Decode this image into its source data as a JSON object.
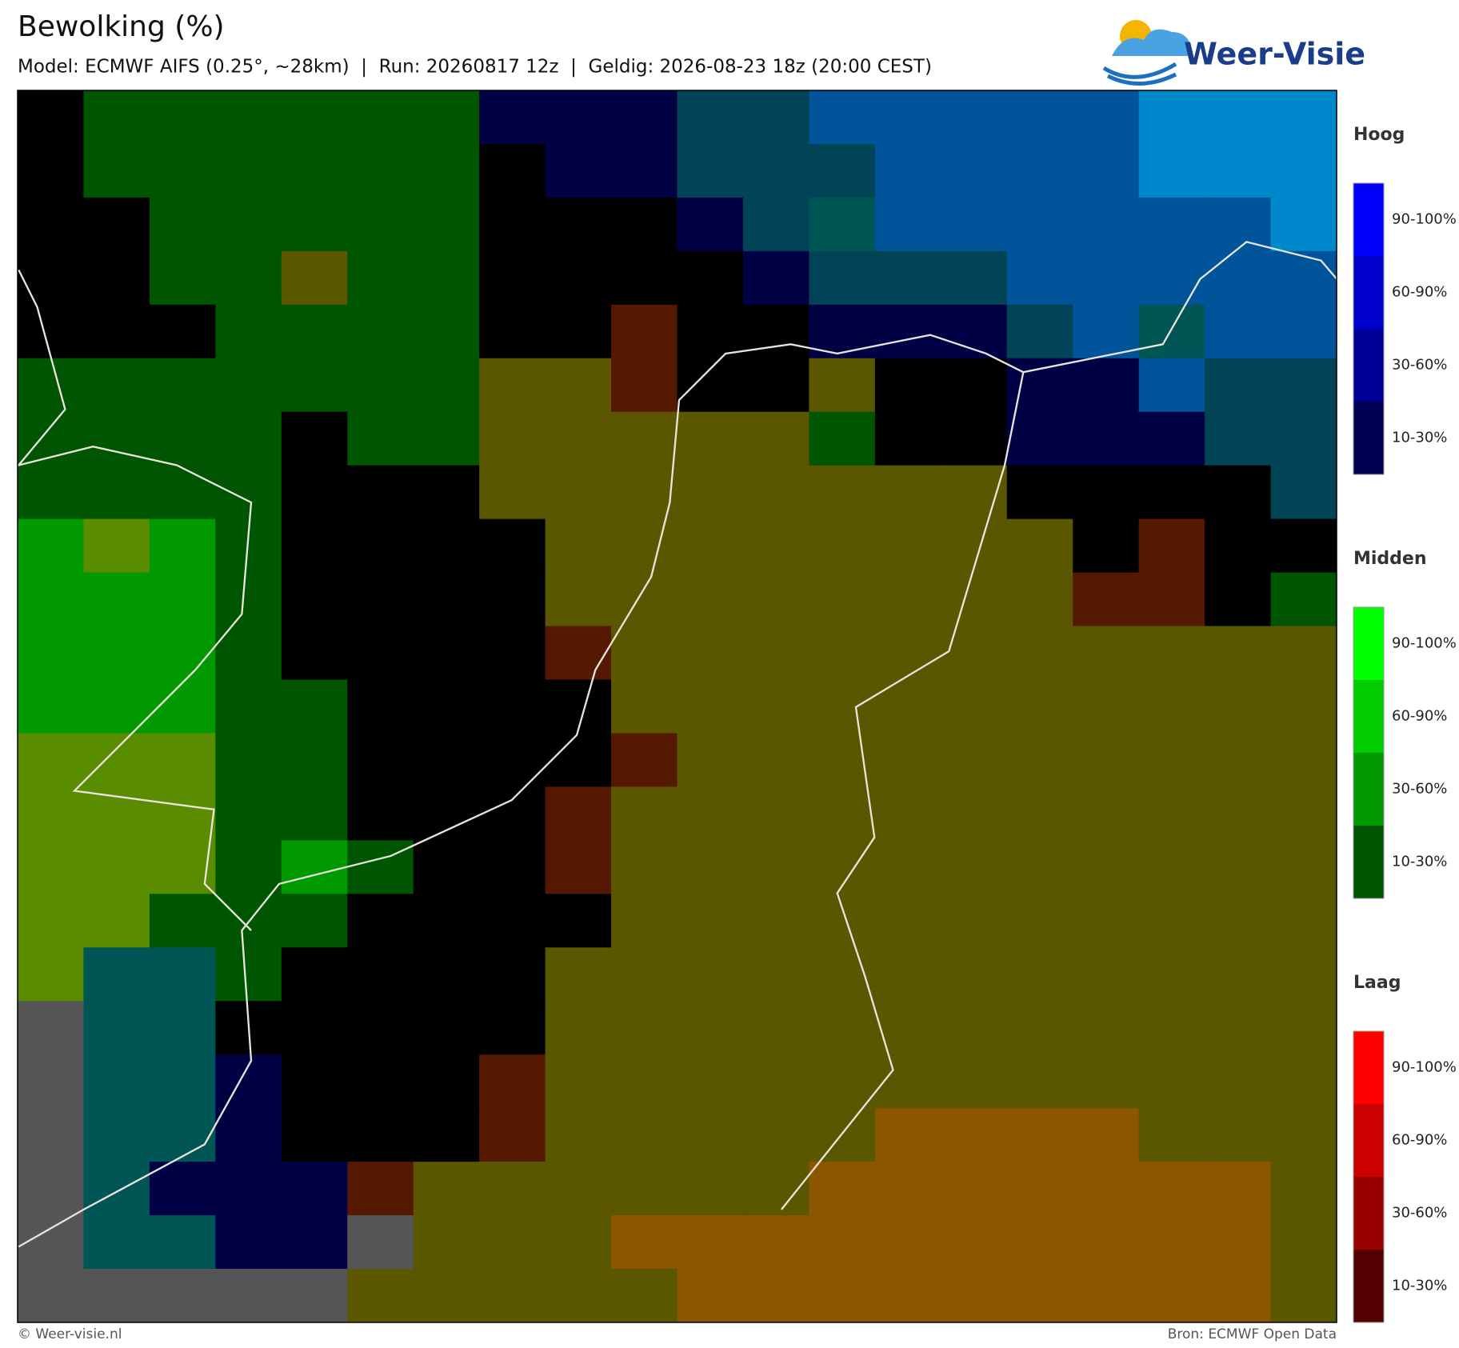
{
  "header": {
    "title": "Bewolking (%)",
    "subtitle": "Model: ECMWF AIFS (0.25°, ~28km)  |  Run: 20260817 12z  |  Geldig: 2026-08-23 18z (20:00 CEST)"
  },
  "logo": {
    "text": "Weer-Visie"
  },
  "legend": [
    {
      "title": "Hoog",
      "labels": [
        "90-100%",
        "60-90%",
        "30-60%",
        "10-30%"
      ]
    },
    {
      "title": "Midden",
      "labels": [
        "90-100%",
        "60-90%",
        "30-60%",
        "10-30%"
      ]
    },
    {
      "title": "Laag",
      "labels": [
        "90-100%",
        "60-90%",
        "30-60%",
        "10-30%"
      ]
    }
  ],
  "footer": {
    "left": "© Weer-visie.nl",
    "right": "Bron: ECMWF Open Data"
  }
}
